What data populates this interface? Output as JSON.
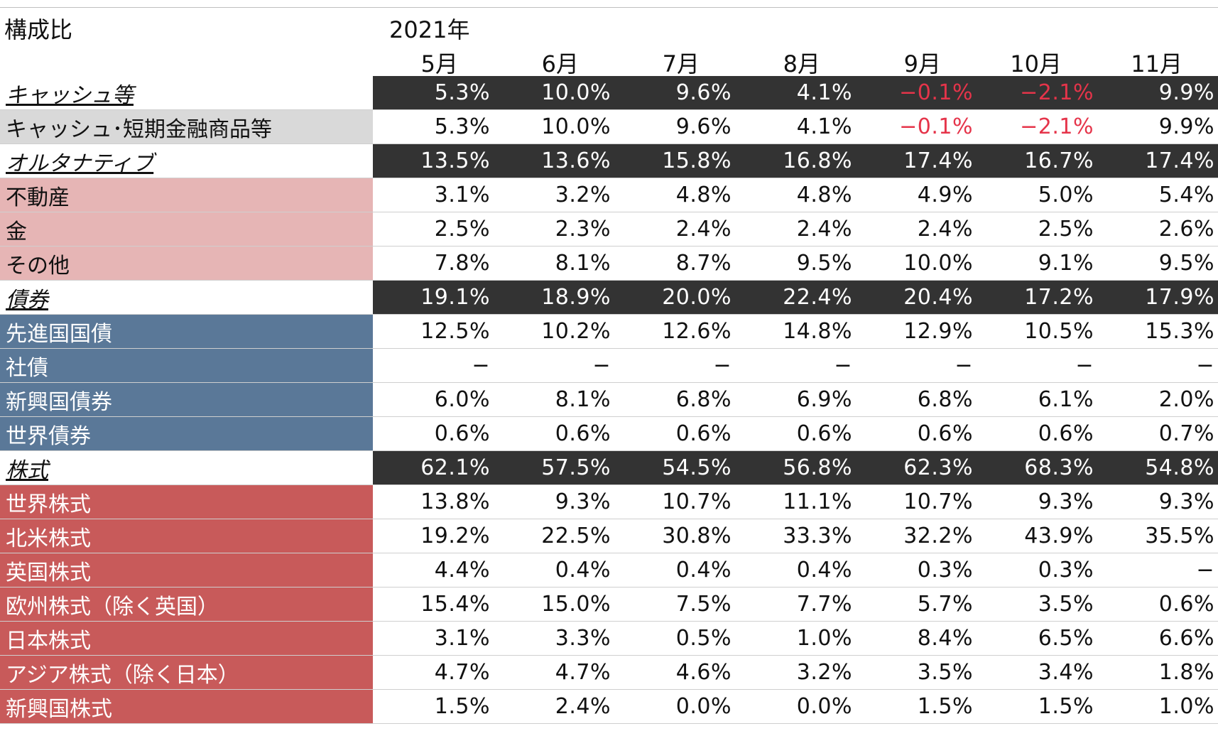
{
  "header": {
    "title": "構成比",
    "year": "2021年",
    "months": [
      "5月",
      "6月",
      "7月",
      "8月",
      "9月",
      "10月",
      "11月"
    ]
  },
  "rows": [
    {
      "label": "キャッシュ等",
      "type": "category",
      "values": [
        "5.3%",
        "10.0%",
        "9.6%",
        "4.1%",
        "−0.1%",
        "−2.1%",
        "9.9%"
      ]
    },
    {
      "label": "キャッシュ･短期金融商品等",
      "type": "cash",
      "values": [
        "5.3%",
        "10.0%",
        "9.6%",
        "4.1%",
        "−0.1%",
        "−2.1%",
        "9.9%"
      ]
    },
    {
      "label": "オルタナティブ",
      "type": "category",
      "values": [
        "13.5%",
        "13.6%",
        "15.8%",
        "16.8%",
        "17.4%",
        "16.7%",
        "17.4%"
      ]
    },
    {
      "label": "不動産",
      "type": "alt",
      "values": [
        "3.1%",
        "3.2%",
        "4.8%",
        "4.8%",
        "4.9%",
        "5.0%",
        "5.4%"
      ]
    },
    {
      "label": "金",
      "type": "alt",
      "values": [
        "2.5%",
        "2.3%",
        "2.4%",
        "2.4%",
        "2.4%",
        "2.5%",
        "2.6%"
      ]
    },
    {
      "label": "その他",
      "type": "alt",
      "values": [
        "7.8%",
        "8.1%",
        "8.7%",
        "9.5%",
        "10.0%",
        "9.1%",
        "9.5%"
      ]
    },
    {
      "label": "債券",
      "type": "category",
      "values": [
        "19.1%",
        "18.9%",
        "20.0%",
        "22.4%",
        "20.4%",
        "17.2%",
        "17.9%"
      ]
    },
    {
      "label": "先進国国債",
      "type": "bond",
      "values": [
        "12.5%",
        "10.2%",
        "12.6%",
        "14.8%",
        "12.9%",
        "10.5%",
        "15.3%"
      ]
    },
    {
      "label": "社債",
      "type": "bond",
      "values": [
        "−",
        "−",
        "−",
        "−",
        "−",
        "−",
        "−"
      ]
    },
    {
      "label": "新興国債券",
      "type": "bond",
      "values": [
        "6.0%",
        "8.1%",
        "6.8%",
        "6.9%",
        "6.8%",
        "6.1%",
        "2.0%"
      ]
    },
    {
      "label": "世界債券",
      "type": "bond",
      "values": [
        "0.6%",
        "0.6%",
        "0.6%",
        "0.6%",
        "0.6%",
        "0.6%",
        "0.7%"
      ]
    },
    {
      "label": "株式",
      "type": "category",
      "values": [
        "62.1%",
        "57.5%",
        "54.5%",
        "56.8%",
        "62.3%",
        "68.3%",
        "54.8%"
      ]
    },
    {
      "label": "世界株式",
      "type": "eq",
      "values": [
        "13.8%",
        "9.3%",
        "10.7%",
        "11.1%",
        "10.7%",
        "9.3%",
        "9.3%"
      ]
    },
    {
      "label": "北米株式",
      "type": "eq",
      "values": [
        "19.2%",
        "22.5%",
        "30.8%",
        "33.3%",
        "32.2%",
        "43.9%",
        "35.5%"
      ]
    },
    {
      "label": "英国株式",
      "type": "eq",
      "values": [
        "4.4%",
        "0.4%",
        "0.4%",
        "0.4%",
        "0.3%",
        "0.3%",
        "−"
      ]
    },
    {
      "label": "欧州株式（除く英国）",
      "type": "eq",
      "values": [
        "15.4%",
        "15.0%",
        "7.5%",
        "7.7%",
        "5.7%",
        "3.5%",
        "0.6%"
      ]
    },
    {
      "label": "日本株式",
      "type": "eq",
      "values": [
        "3.1%",
        "3.3%",
        "0.5%",
        "1.0%",
        "8.4%",
        "6.5%",
        "6.6%"
      ]
    },
    {
      "label": "アジア株式（除く日本）",
      "type": "eq",
      "values": [
        "4.7%",
        "4.7%",
        "4.6%",
        "3.2%",
        "3.5%",
        "3.4%",
        "1.8%"
      ]
    },
    {
      "label": "新興国株式",
      "type": "eq",
      "values": [
        "1.5%",
        "2.4%",
        "0.0%",
        "0.0%",
        "1.5%",
        "1.5%",
        "1.0%"
      ]
    }
  ],
  "colors": {
    "category_bg": "#333333",
    "cash_bg": "#d9d9d9",
    "alt_bg": "#e6b5b5",
    "bond_bg": "#5a7898",
    "equity_bg": "#c85a5a",
    "negative": "#e5344a"
  }
}
